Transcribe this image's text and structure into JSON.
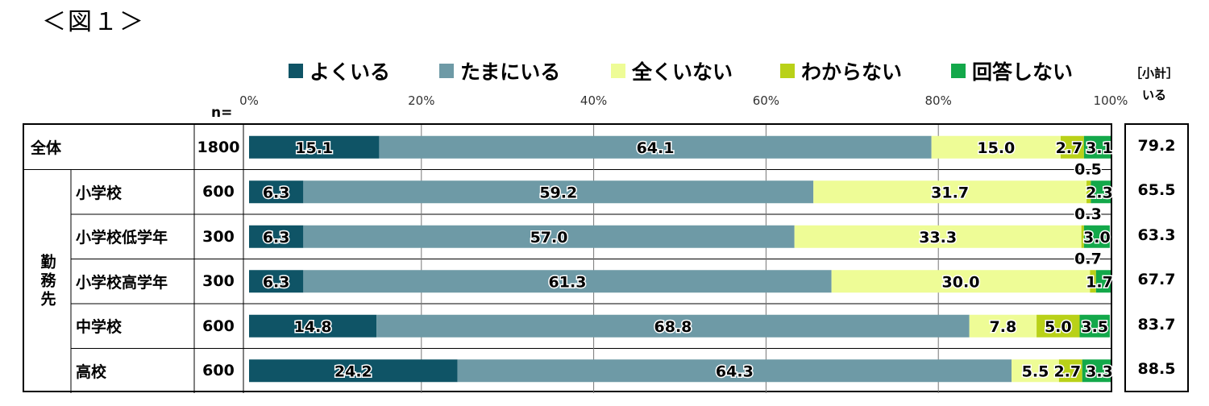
{
  "figure_title": "＜図１＞",
  "subtotal_header": [
    "［小計］",
    "いる"
  ],
  "n_label": "n=",
  "row_group_label": "勤務先",
  "colors": {
    "よくいる": "#0f5466",
    "たまにいる": "#6e9aa6",
    "全くいない": "#eefc96",
    "わからない": "#b9d118",
    "回答しない": "#13a84a"
  },
  "chart_data": {
    "type": "bar",
    "orientation": "horizontal",
    "stacked": true,
    "normalized": true,
    "x_ticks": [
      "0%",
      "20%",
      "40%",
      "60%",
      "80%",
      "100%"
    ],
    "xlim": [
      0,
      100
    ],
    "legend": [
      "よくいる",
      "たまにいる",
      "全くいない",
      "わからない",
      "回答しない"
    ],
    "legend_position": "top",
    "rows": [
      {
        "label": "全体",
        "group": "",
        "n": "1800",
        "values": [
          15.1,
          64.1,
          15.0,
          2.7,
          3.1
        ],
        "labels": [
          "15.1",
          "64.1",
          "15.0",
          "2.7",
          "3.1"
        ],
        "subtotal": "79.2"
      },
      {
        "label": "小学校",
        "group": "勤務先",
        "n": "600",
        "values": [
          6.3,
          59.2,
          31.7,
          0.5,
          2.3
        ],
        "labels": [
          "6.3",
          "59.2",
          "31.7",
          "0.5",
          "2.3"
        ],
        "subtotal": "65.5"
      },
      {
        "label": "小学校低学年",
        "group": "勤務先",
        "n": "300",
        "values": [
          6.3,
          57.0,
          33.3,
          0.3,
          3.0
        ],
        "labels": [
          "6.3",
          "57.0",
          "33.3",
          "0.3",
          "3.0"
        ],
        "subtotal": "63.3"
      },
      {
        "label": "小学校高学年",
        "group": "勤務先",
        "n": "300",
        "values": [
          6.3,
          61.3,
          30.0,
          0.7,
          1.7
        ],
        "labels": [
          "6.3",
          "61.3",
          "30.0",
          "0.7",
          "1.7"
        ],
        "subtotal": "67.7"
      },
      {
        "label": "中学校",
        "group": "勤務先",
        "n": "600",
        "values": [
          14.8,
          68.8,
          7.8,
          5.0,
          3.5
        ],
        "labels": [
          "14.8",
          "68.8",
          "7.8",
          "5.0",
          "3.5"
        ],
        "subtotal": "83.7"
      },
      {
        "label": "高校",
        "group": "勤務先",
        "n": "600",
        "values": [
          24.2,
          64.3,
          5.5,
          2.7,
          3.3
        ],
        "labels": [
          "24.2",
          "64.3",
          "5.5",
          "2.7",
          "3.3"
        ],
        "subtotal": "88.5"
      }
    ]
  }
}
